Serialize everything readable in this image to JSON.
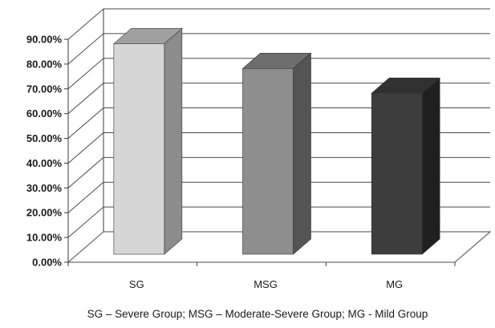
{
  "chart_data": {
    "type": "bar",
    "title": "",
    "xlabel": "",
    "ylabel": "",
    "categories": [
      "SG",
      "MSG",
      "MG"
    ],
    "values": [
      85,
      75,
      65
    ],
    "ylim": [
      0,
      90
    ],
    "yticks": [
      0,
      10,
      20,
      30,
      40,
      50,
      60,
      70,
      80,
      90
    ],
    "ytick_labels": [
      "0.00%",
      "10.00%",
      "20.00%",
      "30.00%",
      "40.00%",
      "50.00%",
      "60.00%",
      "70.00%",
      "80.00%",
      "90.00%"
    ],
    "grid": true,
    "style": "3d-column",
    "legend": "none",
    "bar_colors": [
      {
        "front": "#d6d6d6",
        "side": "#8c8c8c",
        "top": "#a0a0a0"
      },
      {
        "front": "#8e8e8e",
        "side": "#555555",
        "top": "#6e6e6e"
      },
      {
        "front": "#3d3d3d",
        "side": "#1f1f1f",
        "top": "#303030"
      }
    ],
    "caption": "SG – Severe Group; MSG – Moderate-Severe Group; MG - Mild Group"
  }
}
